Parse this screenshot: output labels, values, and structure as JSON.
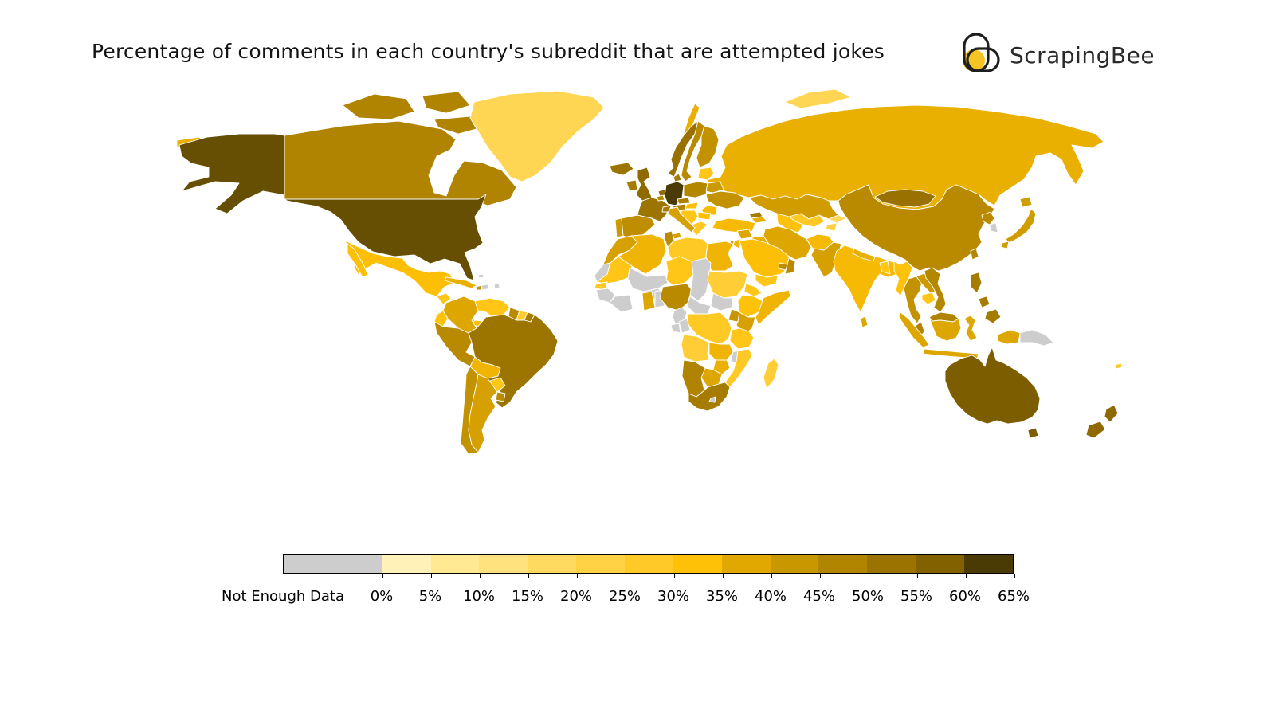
{
  "title": "Percentage of comments in each country's subreddit that are attempted jokes",
  "logo": {
    "text": "ScrapingBee",
    "accent_color": "#F5C324",
    "outline_color": "#1e1e1e"
  },
  "chart_data": {
    "type": "choropleth_map",
    "title": "Percentage of comments in each country's subreddit that are attempted jokes",
    "unit": "%",
    "legend": {
      "no_data_label": "Not Enough Data",
      "tick_labels": [
        "0%",
        "5%",
        "10%",
        "15%",
        "20%",
        "25%",
        "30%",
        "35%",
        "40%",
        "45%",
        "50%",
        "55%",
        "60%",
        "65%"
      ],
      "bin_colors": [
        "#FFF1B7",
        "#FFE993",
        "#FFE27D",
        "#FFDA60",
        "#FFD245",
        "#FFCA28",
        "#FFC107",
        "#E0A800",
        "#C99700",
        "#B28500",
        "#9A7300",
        "#826100",
        "#4A3B04"
      ],
      "no_data_color": "#CDCDCD",
      "range": [
        0,
        65
      ],
      "position": "bottom"
    },
    "countries": {
      "United States": 60,
      "Canada": 48,
      "Greenland": 20,
      "Iceland": 52,
      "Mexico": 33,
      "Guatemala": 30,
      "Honduras": 28,
      "Costa Rica": 35,
      "Panama": 33,
      "Cuba": 36,
      "Haiti": 44,
      "Dominican Republic": null,
      "Puerto Rico": null,
      "Bahamas": null,
      "Colombia": 38,
      "Venezuela": 30,
      "Guyana": 46,
      "Suriname": 27,
      "French Guiana": 50,
      "Ecuador": 32,
      "Peru": 46,
      "Brazil": 52,
      "Bolivia": 35,
      "Paraguay": 30,
      "Chile": 44,
      "Argentina": 40,
      "Uruguay": 46,
      "United Kingdom": 55,
      "Ireland": 50,
      "Portugal": 42,
      "Spain": 45,
      "France": 52,
      "Belgium": 47,
      "Netherlands": 55,
      "Germany": 63,
      "Switzerland": 50,
      "Austria": 48,
      "Czechia": 49,
      "Denmark": 50,
      "Norway": 53,
      "Sweden": 46,
      "Finland": 44,
      "Baltics": 30,
      "Poland": 47,
      "Belarus": 42,
      "Ukraine": 44,
      "Romania": 34,
      "Hungary": 33,
      "Balkans": 30,
      "Bulgaria": 33,
      "Greece": 28,
      "Italy": 40,
      "Russia": 36,
      "Arctic Islands": 20,
      "Kazakhstan": 41,
      "Uzbekistan": 28,
      "Turkmenistan": 32,
      "Kyrgyzstan": 18,
      "Tajikistan": 23,
      "Georgia": 50,
      "Azerbaijan": 36,
      "Turkey": 34,
      "Syria": 38,
      "Iraq": 36,
      "Iran": 38,
      "Afghanistan": 34,
      "Pakistan": 40,
      "Jordan": 35,
      "Israel": 42,
      "Saudi Arabia": 33,
      "Yemen": 30,
      "Oman": 46,
      "United Arab Emirates": 45,
      "Morocco": 40,
      "Western Sahara": null,
      "Algeria": 35,
      "Tunisia": 46,
      "Libya": 28,
      "Egypt": 35,
      "Mauritania": 30,
      "Senegal": 28,
      "Guinea": null,
      "Mali": null,
      "Burkina Faso": null,
      "Ivory Coast": null,
      "Ghana": 38,
      "Benin": null,
      "Niger": 30,
      "Nigeria": 46,
      "Chad": null,
      "Sudan": 25,
      "Eritrea": 30,
      "Ethiopia": 32,
      "Somalia": 35,
      "Cameroon": null,
      "Central African Republic": null,
      "South Sudan": null,
      "Uganda": 43,
      "Kenya": 40,
      "DR Congo": 28,
      "Congo": null,
      "Gabon": null,
      "Tanzania": 30,
      "Angola": 25,
      "Zambia": 35,
      "Malawi": null,
      "Mozambique": 28,
      "Zimbabwe": 36,
      "Botswana": 38,
      "Namibia": 48,
      "South Africa": 50,
      "Lesotho": null,
      "Madagascar": 25,
      "China": 46,
      "Mongolia": 53,
      "North Korea": 46,
      "South Korea": null,
      "Japan": 41,
      "Taiwan": 47,
      "India": 34,
      "Nepal": 36,
      "Bangladesh": 30,
      "Sri Lanka": 38,
      "Myanmar": 32,
      "Thailand": 44,
      "Laos": 42,
      "Cambodia": 30,
      "Vietnam": 47,
      "Malaysia": 48,
      "Indonesia": 38,
      "Philippines": 50,
      "Papua New Guinea": null,
      "Australia": 58,
      "New Zealand": 55,
      "Fiji": 28
    },
    "layout": {
      "no_data_segment_width": 124,
      "bin_segment_width": 61
    }
  }
}
